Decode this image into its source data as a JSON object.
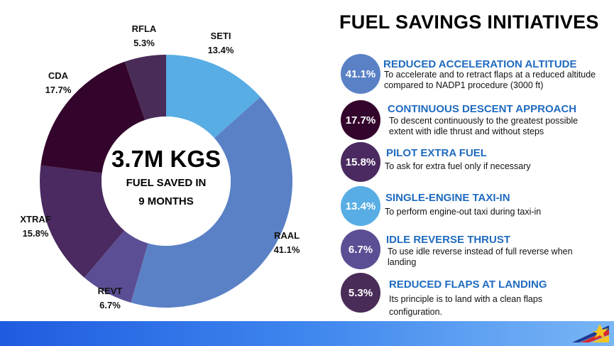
{
  "title": "FUEL SAVINGS INITIATIVES",
  "center": {
    "value": "3.7M KGS",
    "line1": "FUEL SAVED IN",
    "line2": "9 MONTHS"
  },
  "chart_data": {
    "type": "pie",
    "subtype": "donut",
    "start": "SETI at 12 o'clock, clockwise",
    "slices": [
      {
        "label": "SETI",
        "value": 13.4,
        "value_label": "13.4%",
        "color": "#58ade4"
      },
      {
        "label": "RAAL",
        "value": 41.1,
        "value_label": "41.1%",
        "color": "#5a81c6"
      },
      {
        "label": "REVT",
        "value": 6.7,
        "value_label": "6.7%",
        "color": "#5c4e94"
      },
      {
        "label": "XTRAF",
        "value": 15.8,
        "value_label": "15.8%",
        "color": "#4a2a60"
      },
      {
        "label": "CDA",
        "value": 17.7,
        "value_label": "17.7%",
        "color": "#34052c"
      },
      {
        "label": "RFLA",
        "value": 5.3,
        "value_label": "5.3%",
        "color": "#4a2c58"
      }
    ]
  },
  "initiatives": [
    {
      "pct": "41.1%",
      "title": "REDUCED ACCELERATION ALTITUDE",
      "desc": "To accelerate and to retract flaps at a reduced altitude compared to NADP1 procedure (3000 ft)",
      "color": "#5a81c6"
    },
    {
      "pct": "17.7%",
      "title": "CONTINUOUS DESCENT APPROACH",
      "desc": "To descent continuously to the greatest possible extent with idle thrust and without steps",
      "color": "#34052c"
    },
    {
      "pct": "15.8%",
      "title": "PILOT EXTRA FUEL",
      "desc": "To ask for extra fuel only if necessary",
      "color": "#4a2a60"
    },
    {
      "pct": "13.4%",
      "title": "SINGLE-ENGINE TAXI-IN",
      "desc": "To perform engine-out taxi during taxi-in",
      "color": "#58ade4"
    },
    {
      "pct": "6.7%",
      "title": "IDLE REVERSE THRUST",
      "desc": "To use idle reverse instead of full reverse when landing",
      "color": "#5c4e94"
    },
    {
      "pct": "5.3%",
      "title": "REDUCED FLAPS AT LANDING",
      "desc": "Its principle is to land with a clean flaps configuration.",
      "color": "#4a2c58"
    }
  ],
  "footer": {
    "bar_colors": [
      "#1f5be0",
      "#79b6f5"
    ],
    "logo_icon": "airline-logo-icon"
  }
}
